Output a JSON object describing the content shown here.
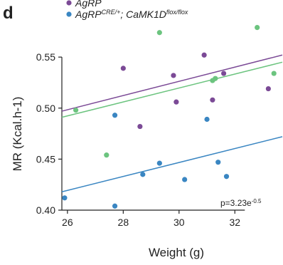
{
  "chart_data": {
    "type": "scatter",
    "panel_label": "d",
    "xlabel": "Weight (g)",
    "ylabel": "MR (Kcal.h-1)",
    "annotation": [
      "p=3.23e",
      "-0.5"
    ],
    "xlim": [
      25.8,
      33.7
    ],
    "ylim": [
      0.4,
      0.585
    ],
    "xticks": [
      26,
      28,
      30,
      32
    ],
    "yticks": [
      {
        "value": 0.4,
        "label": "0.40"
      },
      0.45,
      {
        "value": 0.5,
        "label": "0.50"
      },
      0.55
    ],
    "series": [
      {
        "name": [
          "AgRP"
        ],
        "color": "#7b4a96",
        "x": [
          28.0,
          29.8,
          30.9,
          29.9,
          28.6,
          31.2,
          31.6,
          33.2
        ],
        "values": [
          0.539,
          0.532,
          0.552,
          0.506,
          0.482,
          0.508,
          0.534,
          0.519
        ],
        "fit_x": [
          25.8,
          33.7
        ],
        "fit_y": [
          0.497,
          0.552
        ]
      },
      {
        "color": "#6cc47f",
        "x": [
          29.3,
          26.3,
          27.4,
          31.3,
          31.2,
          32.8,
          33.4
        ],
        "values": [
          0.574,
          0.498,
          0.454,
          0.529,
          0.527,
          0.579,
          0.534
        ],
        "fit_x": [
          25.8,
          33.7
        ],
        "fit_y": [
          0.491,
          0.545
        ]
      },
      {
        "name": [
          "AgRP",
          "CRE/+",
          "; CaMK1D",
          "flox/flox"
        ],
        "color": "#3a86c2",
        "x": [
          25.9,
          27.7,
          27.7,
          28.7,
          29.3,
          30.2,
          31.0,
          31.4,
          31.7
        ],
        "values": [
          0.412,
          0.493,
          0.404,
          0.435,
          0.446,
          0.43,
          0.489,
          0.447,
          0.433
        ],
        "fit_x": [
          25.8,
          33.7
        ],
        "fit_y": [
          0.418,
          0.472
        ]
      }
    ]
  }
}
